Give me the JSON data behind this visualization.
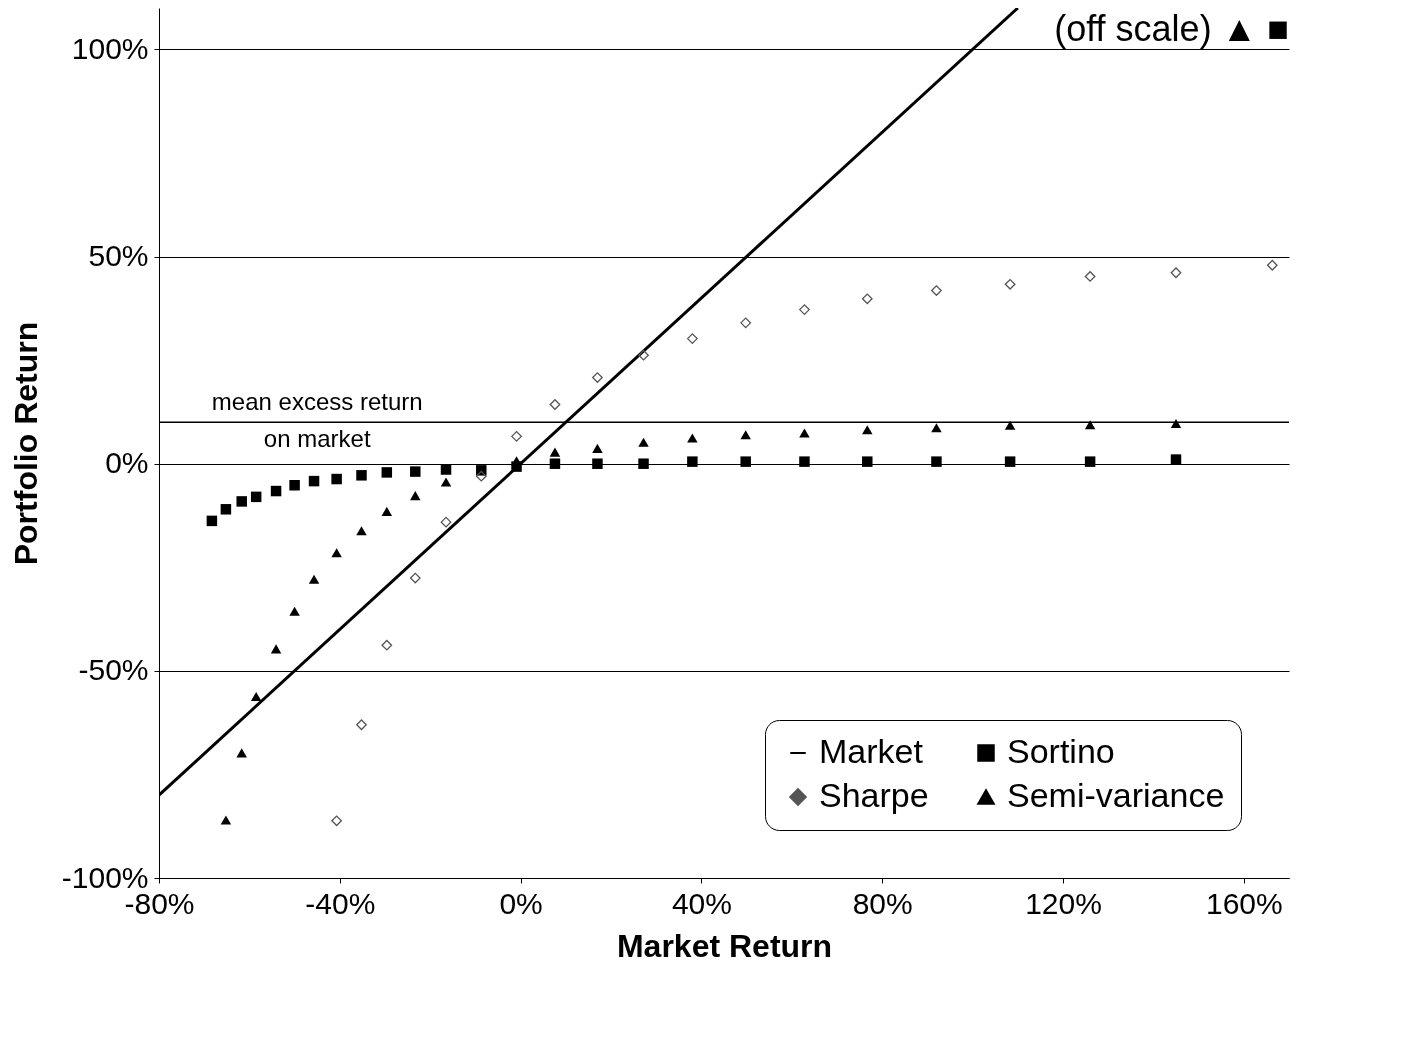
{
  "chart_data": {
    "type": "scatter",
    "xlabel": "Market Return",
    "ylabel": "Portfolio Return",
    "x": [
      -68.3,
      -65.2,
      -61.7,
      -58.5,
      -54.1,
      -50,
      -45.7,
      -40.7,
      -35.2,
      -29.6,
      -23.3,
      -16.5,
      -8.7,
      -0.9,
      7.6,
      17,
      27.2,
      38,
      49.8,
      62.8,
      76.7,
      92,
      108.3,
      126,
      145,
      166.3
    ],
    "series": [
      {
        "name": "Market",
        "type": "line",
        "color": "#000000",
        "marker": "none",
        "x": [
          -80,
          110
        ],
        "values": [
          -80,
          110
        ]
      },
      {
        "name": "Sortino",
        "color": "#000000",
        "marker": "square",
        "values": [
          -13.8,
          -11,
          -9.1,
          -8,
          -6.6,
          -5.2,
          -4.2,
          -3.7,
          -2.8,
          -2.1,
          -1.9,
          -1.4,
          -1.6,
          -0.7,
          0,
          0,
          0,
          0.5,
          0.5,
          0.5,
          0.5,
          0.5,
          0.5,
          0.5,
          1,
          null
        ]
      },
      {
        "name": "Sharpe",
        "color": "#555555",
        "marker": "diamond",
        "values": [
          null,
          null,
          null,
          null,
          null,
          null,
          null,
          -86.2,
          -63,
          -43.8,
          -27.6,
          -14.1,
          -3,
          6.6,
          14.3,
          20.8,
          26.2,
          30.2,
          34,
          37.2,
          39.8,
          41.8,
          43.3,
          45.2,
          46.1,
          47.9
        ]
      },
      {
        "name": "Semi-variance",
        "color": "#000000",
        "marker": "triangle",
        "values": [
          null,
          -86,
          -69.8,
          -56.2,
          -44.7,
          -35.6,
          -27.9,
          -21.5,
          -16.2,
          -11.5,
          -7.7,
          -4.4,
          null,
          0.7,
          2.8,
          3.7,
          5.2,
          6.2,
          7,
          7.4,
          8.2,
          8.7,
          9.3,
          9.4,
          9.7,
          null
        ]
      }
    ],
    "xlim": [
      -80,
      170
    ],
    "ylim": [
      -100,
      110
    ],
    "xticks": [
      {
        "value": -80,
        "label": "-80%"
      },
      {
        "value": -40,
        "label": "-40%"
      },
      {
        "value": 0,
        "label": "0%"
      },
      {
        "value": 40,
        "label": "40%"
      },
      {
        "value": 80,
        "label": "80%"
      },
      {
        "value": 120,
        "label": "120%"
      },
      {
        "value": 160,
        "label": "160%"
      }
    ],
    "yticks": [
      {
        "value": -100,
        "label": "-100%"
      },
      {
        "value": -50,
        "label": "-50%"
      },
      {
        "value": 0,
        "label": "0%"
      },
      {
        "value": 50,
        "label": "50%"
      },
      {
        "value": 100,
        "label": "100%"
      }
    ],
    "grid": "y",
    "legend": "bottom right",
    "ref_lines": [
      {
        "axis": "y",
        "value": 10,
        "label": "mean excess return\non market"
      }
    ],
    "annotations": [
      "(off scale) ▲ ■"
    ]
  }
}
